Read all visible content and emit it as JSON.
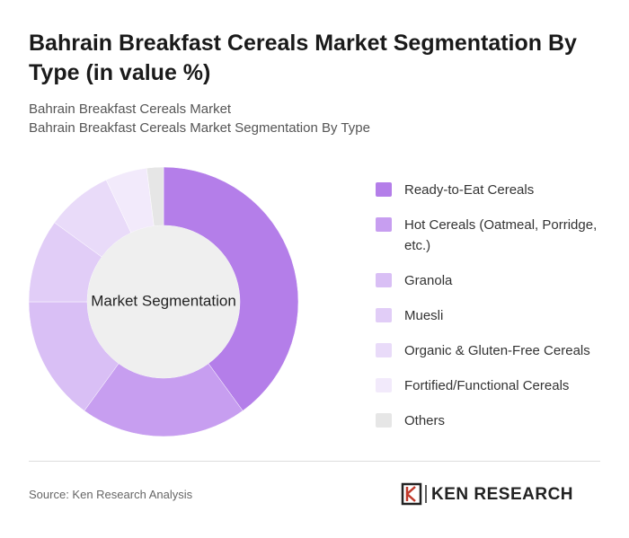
{
  "chart_data": {
    "type": "donut",
    "title": "Bahrain Breakfast Cereals Market Segmentation By Type (in value %)",
    "subtitle": [
      "Bahrain Breakfast Cereals Market",
      "Bahrain Breakfast Cereals Market Segmentation By Type"
    ],
    "center_label": "Market Segmentation",
    "categories": [
      "Ready-to-Eat Cereals",
      "Hot Cereals (Oatmeal, Porridge, etc.)",
      "Granola",
      "Muesli",
      "Organic & Gluten-Free Cereals",
      "Fortified/Functional Cereals",
      "Others"
    ],
    "values": [
      40,
      20,
      15,
      10,
      8,
      5,
      2
    ],
    "colors": [
      "#b47ee9",
      "#c79ef0",
      "#d9bff5",
      "#e1cdf7",
      "#e9dbf9",
      "#f2eafb",
      "#e6e6e6"
    ]
  },
  "source": "Source: Ken Research Analysis",
  "logo": "KEN RESEARCH"
}
